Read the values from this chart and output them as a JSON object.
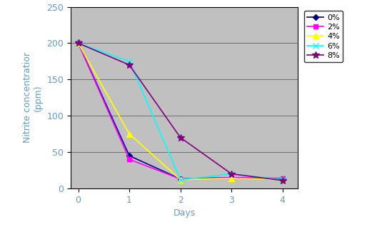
{
  "title": "",
  "xlabel": "Days",
  "ylabel": "Nitrite concentratior\n(ppm)",
  "xlim": [
    -0.15,
    4.3
  ],
  "ylim": [
    0,
    250
  ],
  "yticks": [
    0,
    50,
    100,
    150,
    200,
    250
  ],
  "xticks": [
    0,
    1,
    2,
    3,
    4
  ],
  "background_color": "#c0c0c0",
  "fig_facecolor": "#ffffff",
  "label_color": "#6699cc",
  "tick_color": "#6699cc",
  "series": [
    {
      "label": "0%",
      "x": [
        0,
        1,
        2,
        3,
        4
      ],
      "y": [
        200,
        45,
        13,
        15,
        12
      ],
      "color": "#00008B",
      "marker": "D",
      "markersize": 4,
      "linewidth": 1.2
    },
    {
      "label": "2%",
      "x": [
        0,
        1,
        2,
        3,
        4
      ],
      "y": [
        200,
        40,
        13,
        15,
        14
      ],
      "color": "#FF00FF",
      "marker": "s",
      "markersize": 5,
      "linewidth": 1.2
    },
    {
      "label": "4%",
      "x": [
        0,
        1,
        2,
        3,
        4
      ],
      "y": [
        200,
        75,
        12,
        14,
        12
      ],
      "color": "#FFFF00",
      "marker": "^",
      "markersize": 6,
      "linewidth": 1.2
    },
    {
      "label": "6%",
      "x": [
        0,
        1,
        2,
        3,
        4
      ],
      "y": [
        200,
        175,
        12,
        20,
        12
      ],
      "color": "#00FFFF",
      "marker": "x",
      "markersize": 6,
      "linewidth": 1.2
    },
    {
      "label": "8%",
      "x": [
        0,
        1,
        2,
        3,
        4
      ],
      "y": [
        200,
        170,
        70,
        20,
        11
      ],
      "color": "#800080",
      "marker": "*",
      "markersize": 7,
      "linewidth": 1.2
    }
  ],
  "legend_fontsize": 8,
  "axis_label_fontsize": 9,
  "tick_fontsize": 9,
  "grid_color": "#000000",
  "grid_linewidth": 0.6
}
